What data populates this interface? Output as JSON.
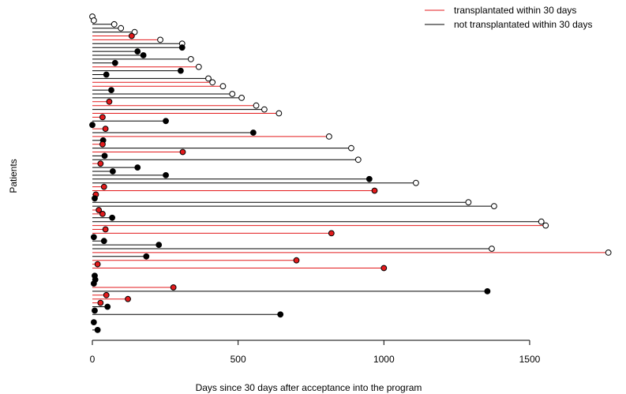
{
  "chart_data": {
    "type": "lollipop",
    "xlabel": "Days since 30 days after acceptance into the program",
    "ylabel": "Patients",
    "xlim": [
      0,
      1780
    ],
    "xticks": [
      0,
      500,
      1000,
      1500
    ],
    "grid": false,
    "legend_position": "top-right",
    "legend": [
      {
        "label": "transplantated within 30 days",
        "color": "#e31a1c"
      },
      {
        "label": "not transplantated within 30 days",
        "color": "#000000"
      }
    ],
    "marker_legend": {
      "filled": "event",
      "open": "censored"
    },
    "series": [
      {
        "name": "transplantated within 30 days",
        "color": "#e31a1c"
      },
      {
        "name": "not transplantated within 30 days",
        "color": "#000000"
      }
    ],
    "patients": [
      {
        "days": 0,
        "group": "not",
        "filled": false
      },
      {
        "days": 5,
        "group": "not",
        "filled": false
      },
      {
        "days": 75,
        "group": "not",
        "filled": false
      },
      {
        "days": 98,
        "group": "not",
        "filled": false
      },
      {
        "days": 145,
        "group": "not",
        "filled": false
      },
      {
        "days": 135,
        "group": "transplanted",
        "filled": true
      },
      {
        "days": 233,
        "group": "transplanted",
        "filled": false
      },
      {
        "days": 308,
        "group": "not",
        "filled": false
      },
      {
        "days": 308,
        "group": "not",
        "filled": true
      },
      {
        "days": 155,
        "group": "not",
        "filled": true
      },
      {
        "days": 175,
        "group": "not",
        "filled": true
      },
      {
        "days": 338,
        "group": "not",
        "filled": false
      },
      {
        "days": 78,
        "group": "not",
        "filled": true
      },
      {
        "days": 365,
        "group": "transplanted",
        "filled": false
      },
      {
        "days": 303,
        "group": "not",
        "filled": true
      },
      {
        "days": 48,
        "group": "not",
        "filled": true
      },
      {
        "days": 398,
        "group": "not",
        "filled": false
      },
      {
        "days": 412,
        "group": "transplanted",
        "filled": false
      },
      {
        "days": 448,
        "group": "transplanted",
        "filled": false
      },
      {
        "days": 65,
        "group": "not",
        "filled": true
      },
      {
        "days": 480,
        "group": "not",
        "filled": false
      },
      {
        "days": 512,
        "group": "not",
        "filled": false
      },
      {
        "days": 58,
        "group": "transplanted",
        "filled": true
      },
      {
        "days": 562,
        "group": "transplanted",
        "filled": false
      },
      {
        "days": 590,
        "group": "not",
        "filled": false
      },
      {
        "days": 640,
        "group": "transplanted",
        "filled": false
      },
      {
        "days": 35,
        "group": "transplanted",
        "filled": true
      },
      {
        "days": 252,
        "group": "not",
        "filled": true
      },
      {
        "days": 0,
        "group": "not",
        "filled": true
      },
      {
        "days": 45,
        "group": "transplanted",
        "filled": true
      },
      {
        "days": 552,
        "group": "not",
        "filled": true
      },
      {
        "days": 812,
        "group": "transplanted",
        "filled": false
      },
      {
        "days": 37,
        "group": "not",
        "filled": true
      },
      {
        "days": 35,
        "group": "transplanted",
        "filled": true
      },
      {
        "days": 888,
        "group": "not",
        "filled": false
      },
      {
        "days": 310,
        "group": "transplanted",
        "filled": true
      },
      {
        "days": 42,
        "group": "not",
        "filled": true
      },
      {
        "days": 912,
        "group": "not",
        "filled": false
      },
      {
        "days": 28,
        "group": "transplanted",
        "filled": true
      },
      {
        "days": 155,
        "group": "not",
        "filled": true
      },
      {
        "days": 70,
        "group": "not",
        "filled": true
      },
      {
        "days": 252,
        "group": "not",
        "filled": true
      },
      {
        "days": 950,
        "group": "not",
        "filled": true
      },
      {
        "days": 1110,
        "group": "not",
        "filled": false
      },
      {
        "days": 40,
        "group": "transplanted",
        "filled": true
      },
      {
        "days": 968,
        "group": "transplanted",
        "filled": true
      },
      {
        "days": 12,
        "group": "transplanted",
        "filled": true
      },
      {
        "days": 8,
        "group": "not",
        "filled": true
      },
      {
        "days": 1290,
        "group": "not",
        "filled": false
      },
      {
        "days": 1378,
        "group": "not",
        "filled": false
      },
      {
        "days": 22,
        "group": "transplanted",
        "filled": true
      },
      {
        "days": 35,
        "group": "transplanted",
        "filled": true
      },
      {
        "days": 68,
        "group": "not",
        "filled": true
      },
      {
        "days": 1540,
        "group": "not",
        "filled": false
      },
      {
        "days": 1555,
        "group": "transplanted",
        "filled": false
      },
      {
        "days": 45,
        "group": "transplanted",
        "filled": true
      },
      {
        "days": 820,
        "group": "transplanted",
        "filled": true
      },
      {
        "days": 5,
        "group": "not",
        "filled": true
      },
      {
        "days": 40,
        "group": "not",
        "filled": true
      },
      {
        "days": 228,
        "group": "not",
        "filled": true
      },
      {
        "days": 1370,
        "group": "not",
        "filled": false
      },
      {
        "days": 1770,
        "group": "transplanted",
        "filled": false
      },
      {
        "days": 185,
        "group": "not",
        "filled": true
      },
      {
        "days": 700,
        "group": "transplanted",
        "filled": true
      },
      {
        "days": 18,
        "group": "transplanted",
        "filled": true
      },
      {
        "days": 1000,
        "group": "transplanted",
        "filled": true
      },
      null,
      {
        "days": 8,
        "group": "not",
        "filled": true
      },
      {
        "days": 10,
        "group": "not",
        "filled": true
      },
      {
        "days": 5,
        "group": "not",
        "filled": true
      },
      {
        "days": 278,
        "group": "transplanted",
        "filled": true
      },
      {
        "days": 1355,
        "group": "not",
        "filled": true
      },
      {
        "days": 48,
        "group": "transplanted",
        "filled": true
      },
      {
        "days": 122,
        "group": "transplanted",
        "filled": true
      },
      {
        "days": 28,
        "group": "transplanted",
        "filled": true
      },
      {
        "days": 52,
        "group": "not",
        "filled": true
      },
      {
        "days": 8,
        "group": "not",
        "filled": true
      },
      {
        "days": 645,
        "group": "not",
        "filled": true
      },
      null,
      {
        "days": 5,
        "group": "not",
        "filled": true
      },
      null,
      {
        "days": 18,
        "group": "not",
        "filled": true
      }
    ]
  }
}
